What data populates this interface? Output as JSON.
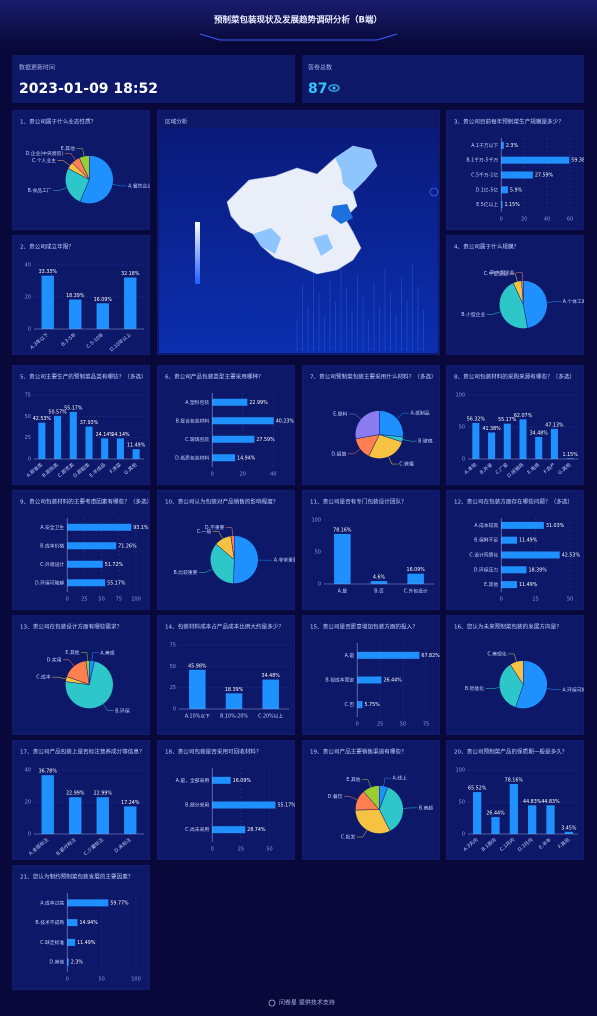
{
  "header": {
    "title": "预制菜包装现状及发展趋势调研分析（B端）"
  },
  "cards": [
    {
      "label": "数据更新时间",
      "value": "2023-01-09 18:52"
    },
    {
      "label": "答卷总数",
      "value": 87
    }
  ],
  "chart_data": [
    {
      "type": "pie",
      "title": "1、贵公司属于什么业态性质？",
      "categories": [
        "A.餐饮企业",
        "B.食品工厂",
        "C.个人业主",
        "D.企业(中央厨房)",
        "E.其他"
      ],
      "values": [
        56.32,
        26.44,
        4.6,
        5.75,
        6.9
      ],
      "colors": [
        "#1e90ff",
        "#2ec7c9",
        "#f5c242",
        "#ff7f50",
        "#9acd32"
      ]
    },
    {
      "type": "map",
      "title": "区域分析"
    },
    {
      "type": "hbar",
      "title": "3、贵公司目前每年预制菜生产规模是多少？",
      "categories": [
        "A.1千万以下",
        "B.1千万-5千万",
        "C.5千万-1亿",
        "D.1亿-5亿",
        "E.5亿以上"
      ],
      "values": [
        2.3,
        59.38,
        27.59,
        5.9,
        1.15
      ],
      "value_labels": [
        "2.3%",
        "59.38%",
        "27.59%",
        "5.9%",
        "1.15%"
      ],
      "xlim": [
        0,
        60
      ],
      "xticks": [
        0,
        20,
        40,
        60
      ],
      "color": "#1e90ff"
    },
    {
      "type": "bar",
      "title": "2、贵公司成立年限？",
      "categories": [
        "A.3年以下",
        "B.3-5年",
        "C.5-10年",
        "D.10年以上"
      ],
      "values": [
        33.33,
        18.39,
        16.09,
        32.18
      ],
      "value_labels": [
        "33.33%",
        "18.39%",
        "16.09%",
        "32.18%"
      ],
      "ylim": [
        0,
        40
      ],
      "yticks": [
        0,
        20,
        40
      ],
      "color": "#1e90ff"
    },
    {
      "type": "pie",
      "title": "4、贵公司属于什么规模？",
      "categories": [
        "A.个体工商户",
        "B.小型企业",
        "C.中型企业",
        "D.大型企业"
      ],
      "values": [
        47.13,
        45.98,
        5.75,
        1.15
      ],
      "colors": [
        "#1e90ff",
        "#2ec7c9",
        "#f5c242",
        "#ff7f50"
      ]
    },
    {
      "type": "bar",
      "title": "5、贵公司主要生产的预制菜品类有哪些？（多选）",
      "categories": [
        "A.即食类",
        "B.即热类",
        "C.即烹类",
        "D.即配类",
        "E.半成品",
        "F.净菜",
        "G.其他"
      ],
      "values": [
        42.53,
        50.57,
        55.17,
        37.93,
        24.14,
        24.14,
        11.49
      ],
      "value_labels": [
        "42.53%",
        "50.57%",
        "55.17%",
        "37.93%",
        "24.14%",
        "24.14%",
        "11.49%"
      ],
      "ylim": [
        0,
        75
      ],
      "yticks": [
        0,
        25,
        50,
        75
      ],
      "color": "#1e90ff"
    },
    {
      "type": "hbar",
      "title": "6、贵公司产品包装类型主要采用哪种？",
      "categories": [
        "A.塑料包装",
        "B.复合包装材料",
        "C.玻璃包装",
        "D.纸质包装材料"
      ],
      "values": [
        22.99,
        40.23,
        27.59,
        14.94
      ],
      "value_labels": [
        "22.99%",
        "40.23%",
        "27.59%",
        "14.94%"
      ],
      "xlim": [
        0,
        45
      ],
      "xticks": [
        0,
        20,
        40
      ],
      "color": "#1e90ff"
    },
    {
      "type": "pie",
      "title": "7、贵公司预制菜包装主要采用什么材料？（多选）",
      "categories": [
        "A.纸制品",
        "B.玻璃",
        "C.铁罐",
        "D.铝箔",
        "E.塑料"
      ],
      "values": [
        44.83,
        5.75,
        45.98,
        25.29,
        46.88
      ],
      "colors": [
        "#1e90ff",
        "#2ec7c9",
        "#f5c242",
        "#ff7f50",
        "#8a7cf0"
      ]
    },
    {
      "type": "bar",
      "title": "8、贵公司包装材料的采购来源有哪些？（多选）",
      "categories": [
        "A.本地",
        "B.外省",
        "C.厂家",
        "D.经销商",
        "E.电商",
        "F.自产",
        "G.其他"
      ],
      "values": [
        56.32,
        41.38,
        55.17,
        62.07,
        34.48,
        47.13,
        1.15
      ],
      "value_labels": [
        "56.32%",
        "41.38%",
        "55.17%",
        "62.07%",
        "34.48%",
        "47.13%",
        "1.15%"
      ],
      "ylim": [
        0,
        100
      ],
      "yticks": [
        0,
        50,
        100
      ],
      "color": "#1e90ff"
    },
    {
      "type": "hbar",
      "title": "9、贵公司包装材料的主要考虑因素有哪些？（多选）",
      "categories": [
        "A.安全卫生",
        "B.成本价格",
        "C.外观设计",
        "D.环保可降解"
      ],
      "values": [
        93.1,
        71.26,
        51.72,
        55.17
      ],
      "value_labels": [
        "93.1%",
        "71.26%",
        "51.72%",
        "55.17%"
      ],
      "xlim": [
        0,
        100
      ],
      "xticks": [
        0,
        25,
        50,
        75,
        100
      ],
      "color": "#1e90ff"
    },
    {
      "type": "pie",
      "title": "10、贵公司认为包装对产品销售的影响程度？",
      "categories": [
        "A.非常重要",
        "B.比较重要",
        "C.一般",
        "D.不重要"
      ],
      "values": [
        50.57,
        35.63,
        11.49,
        2.3
      ],
      "colors": [
        "#1e90ff",
        "#2ec7c9",
        "#f5c242",
        "#ff7f50"
      ]
    },
    {
      "type": "bar",
      "title": "11、贵公司是否有专门包装设计团队？",
      "categories": [
        "A.是",
        "B.否",
        "C.外包设计"
      ],
      "values": [
        78.16,
        4.6,
        16.09
      ],
      "value_labels": [
        "78.16%",
        "4.6%",
        "16.09%"
      ],
      "ylim": [
        0,
        100
      ],
      "yticks": [
        0,
        50,
        100
      ],
      "color": "#1e90ff"
    },
    {
      "type": "hbar",
      "title": "12、贵公司在包装方面存在哪些问题？（多选）",
      "categories": [
        "A.成本较高",
        "B.保鲜不足",
        "C.设计同质化",
        "D.环保压力",
        "E.其他"
      ],
      "values": [
        31.03,
        11.49,
        42.53,
        18.39,
        11.49
      ],
      "value_labels": [
        "31.03%",
        "11.49%",
        "42.53%",
        "18.39%",
        "11.49%"
      ],
      "xlim": [
        0,
        50
      ],
      "xticks": [
        0,
        25,
        50
      ],
      "color": "#1e90ff"
    },
    {
      "type": "pie",
      "title": "13、贵公司在包装设计方面有哪些需求？",
      "categories": [
        "A.美观",
        "B.环保",
        "C.成本",
        "D.实用",
        "E.其他"
      ],
      "values": [
        3.45,
        73.56,
        3.45,
        17.24,
        2.3
      ],
      "colors": [
        "#1e90ff",
        "#2ec7c9",
        "#f5c242",
        "#ff7f50",
        "#9acd32"
      ]
    },
    {
      "type": "bar",
      "title": "14、包装材料成本占产品成本比例大约是多少？",
      "categories": [
        "A.10%以下",
        "B.10%-20%",
        "C.20%以上"
      ],
      "values": [
        45.98,
        18.39,
        34.48
      ],
      "value_labels": [
        "45.98%",
        "18.39%",
        "34.48%"
      ],
      "ylim": [
        0,
        75
      ],
      "yticks": [
        0,
        25,
        50,
        75
      ],
      "color": "#1e90ff"
    },
    {
      "type": "hbar",
      "title": "15、贵公司是否愿意增加包装方面的投入？",
      "categories": [
        "A.是",
        "B.视成本而定",
        "C.否"
      ],
      "values": [
        67.82,
        26.44,
        5.75
      ],
      "value_labels": [
        "67.82%",
        "26.44%",
        "5.75%"
      ],
      "xlim": [
        0,
        75
      ],
      "xticks": [
        0,
        25,
        50,
        75
      ],
      "color": "#1e90ff"
    },
    {
      "type": "pie",
      "title": "16、您认为未来预制菜包装的发展方向是？",
      "categories": [
        "A.环保可降解",
        "B.智能化",
        "C.美观化"
      ],
      "values": [
        55.17,
        35.63,
        9.2
      ],
      "colors": [
        "#1e90ff",
        "#2ec7c9",
        "#f5c242"
      ]
    },
    {
      "type": "bar",
      "title": "17、贵公司产品包装上是否标注营养成分等信息？",
      "categories": [
        "A.全部标注",
        "B.部分标注",
        "C.少量标注",
        "D.未标注"
      ],
      "values": [
        36.78,
        22.99,
        22.99,
        17.24
      ],
      "value_labels": [
        "36.78%",
        "22.99%",
        "22.99%",
        "17.24%"
      ],
      "ylim": [
        0,
        40
      ],
      "yticks": [
        0,
        20,
        40
      ],
      "color": "#1e90ff"
    },
    {
      "type": "hbar",
      "title": "18、贵公司包装是否采用可回收材料？",
      "categories": [
        "A.是，全部采用",
        "B.部分采用",
        "C.尚未采用"
      ],
      "values": [
        16.09,
        55.17,
        28.74
      ],
      "value_labels": [
        "16.09%",
        "55.17%",
        "28.74%"
      ],
      "xlim": [
        0,
        60
      ],
      "xticks": [
        0,
        25,
        50
      ],
      "color": "#1e90ff"
    },
    {
      "type": "pie",
      "title": "19、贵公司产品主要销售渠道有哪些？",
      "categories": [
        "A.线上",
        "B.商超",
        "C.批发",
        "D.餐饮",
        "E.其他"
      ],
      "values": [
        5.75,
        36.78,
        32.18,
        13.79,
        11.49
      ],
      "colors": [
        "#1e90ff",
        "#2ec7c9",
        "#f5c242",
        "#ff7f50",
        "#9acd32"
      ]
    },
    {
      "type": "bar",
      "title": "20、贵公司预制菜产品的保质期一般是多久？",
      "categories": [
        "A.3天内",
        "B.1周内",
        "C.1月内",
        "D.3月内",
        "E.半年",
        "F.其他"
      ],
      "values": [
        65.52,
        26.44,
        78.16,
        44.83,
        44.83,
        3.45
      ],
      "value_labels": [
        "65.52%",
        "26.44%",
        "78.16%",
        "44.83%",
        "44.83%",
        "3.45%"
      ],
      "ylim": [
        0,
        100
      ],
      "yticks": [
        0,
        50,
        100
      ],
      "color": "#1e90ff"
    },
    {
      "type": "hbar",
      "title": "21、您认为制约预制菜包装发展的主要因素？",
      "categories": [
        "A.成本过高",
        "B.技术不成熟",
        "C.缺乏标准",
        "D.其他"
      ],
      "values": [
        59.77,
        14.94,
        11.49,
        2.3
      ],
      "value_labels": [
        "59.77%",
        "14.94%",
        "11.49%",
        "2.3%"
      ],
      "xlim": [
        0,
        100
      ],
      "xticks": [
        0,
        50,
        100
      ],
      "color": "#1e90ff"
    }
  ],
  "footer": "问卷星 提供技术支持"
}
